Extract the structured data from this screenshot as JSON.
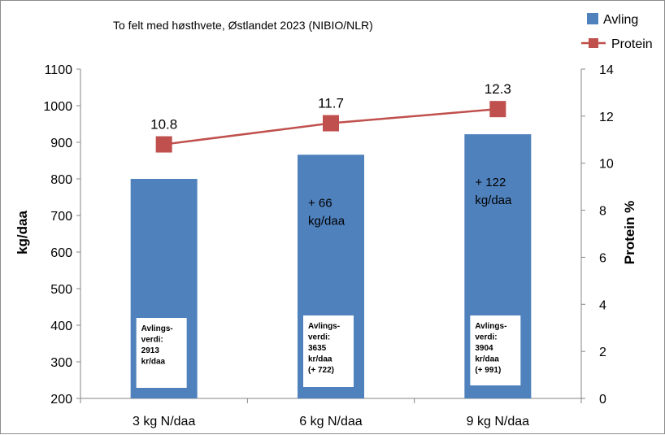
{
  "chart_data": {
    "type": "bar",
    "title": "To felt med høsthvete, Østlandet 2023 (NIBIO/NLR)",
    "ylabel": "kg/daa",
    "y2label": "Protein %",
    "ylim": [
      200,
      1100
    ],
    "y2lim": [
      0,
      14
    ],
    "yticks": [
      "200",
      "300",
      "400",
      "500",
      "600",
      "700",
      "800",
      "900",
      "1000",
      "1100"
    ],
    "y2ticks": [
      "0",
      "2",
      "4",
      "6",
      "8",
      "10",
      "12",
      "14"
    ],
    "categories": [
      "3 kg N/daa",
      "6 kg N/daa",
      "9 kg N/daa"
    ],
    "series": [
      {
        "name": "Avling",
        "type": "bar",
        "axis": "left",
        "color": "#4f81bd",
        "values": [
          800,
          866,
          922
        ]
      },
      {
        "name": "Protein",
        "type": "line",
        "axis": "right",
        "color": "#c0504d",
        "values": [
          10.8,
          11.7,
          12.3
        ],
        "labels": [
          "10.8",
          "11.7",
          "12.3"
        ]
      }
    ],
    "legend": {
      "position": "top-right",
      "items": [
        "Avling",
        "Protein"
      ]
    },
    "grid": false,
    "bar_annotations": [
      [],
      [
        "+ 66",
        "kg/daa"
      ],
      [
        "+ 122",
        "kg/daa"
      ]
    ],
    "value_boxes": [
      [
        "Avlings-",
        "verdi:",
        "2913",
        "kr/daa"
      ],
      [
        "Avlings-",
        "verdi:",
        "3635",
        "kr/daa",
        "(+  722)"
      ],
      [
        "Avlings-",
        "verdi:",
        "3904",
        "kr/daa",
        "(+ 991)"
      ]
    ]
  }
}
